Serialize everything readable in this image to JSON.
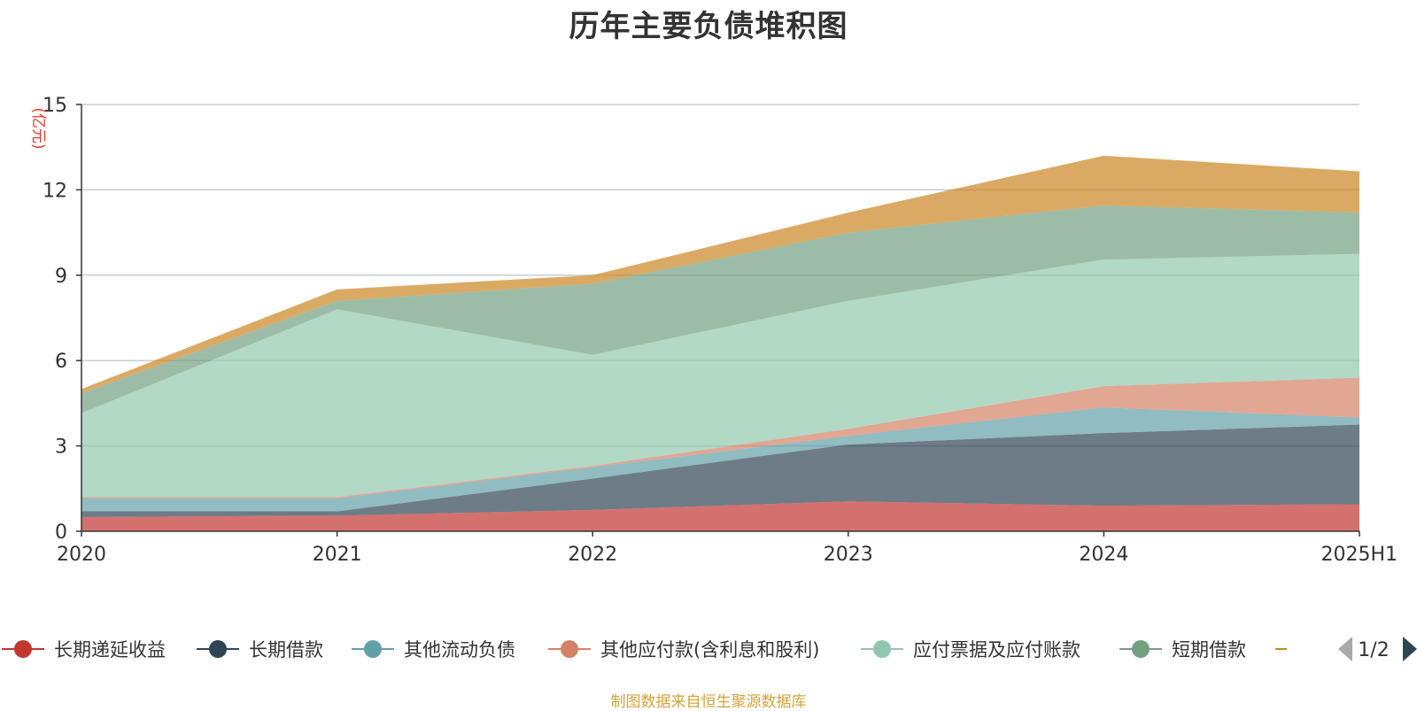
{
  "chart_data": {
    "type": "area",
    "title": "历年主要负债堆积图",
    "unit_label": "(亿元)",
    "x": [
      "2020",
      "2021",
      "2022",
      "2023",
      "2024",
      "2025H1"
    ],
    "ylim": [
      0,
      15
    ],
    "yticks": [
      0,
      3,
      6,
      9,
      12,
      15
    ],
    "stacked": true,
    "grid": true,
    "legend_position": "bottom",
    "series": [
      {
        "name": "长期递延收益",
        "color": "#c23531",
        "values": [
          0.5,
          0.55,
          0.75,
          1.05,
          0.9,
          0.95
        ]
      },
      {
        "name": "长期借款",
        "color": "#2f4554",
        "values": [
          0.2,
          0.15,
          1.1,
          2.0,
          2.55,
          2.8
        ]
      },
      {
        "name": "其他流动负债",
        "color": "#61a0a8",
        "values": [
          0.45,
          0.45,
          0.4,
          0.3,
          0.9,
          0.25
        ]
      },
      {
        "name": "其他应付款(含利息和股利)",
        "color": "#d48265",
        "values": [
          0.05,
          0.05,
          0.05,
          0.25,
          0.75,
          1.4
        ]
      },
      {
        "name": "应付票据及应付账款",
        "color": "#91c7ae",
        "values": [
          2.95,
          6.6,
          3.9,
          4.5,
          4.45,
          4.35
        ]
      },
      {
        "name": "短期借款",
        "color": "#749f83",
        "values": [
          0.7,
          0.3,
          2.5,
          2.4,
          1.9,
          1.45
        ]
      },
      {
        "name": "",
        "color": "#ca8622",
        "values": [
          0.15,
          0.4,
          0.3,
          0.7,
          1.75,
          1.45
        ]
      }
    ],
    "legend_page": "1/2",
    "source_note": "制图数据来自恒生聚源数据库"
  }
}
